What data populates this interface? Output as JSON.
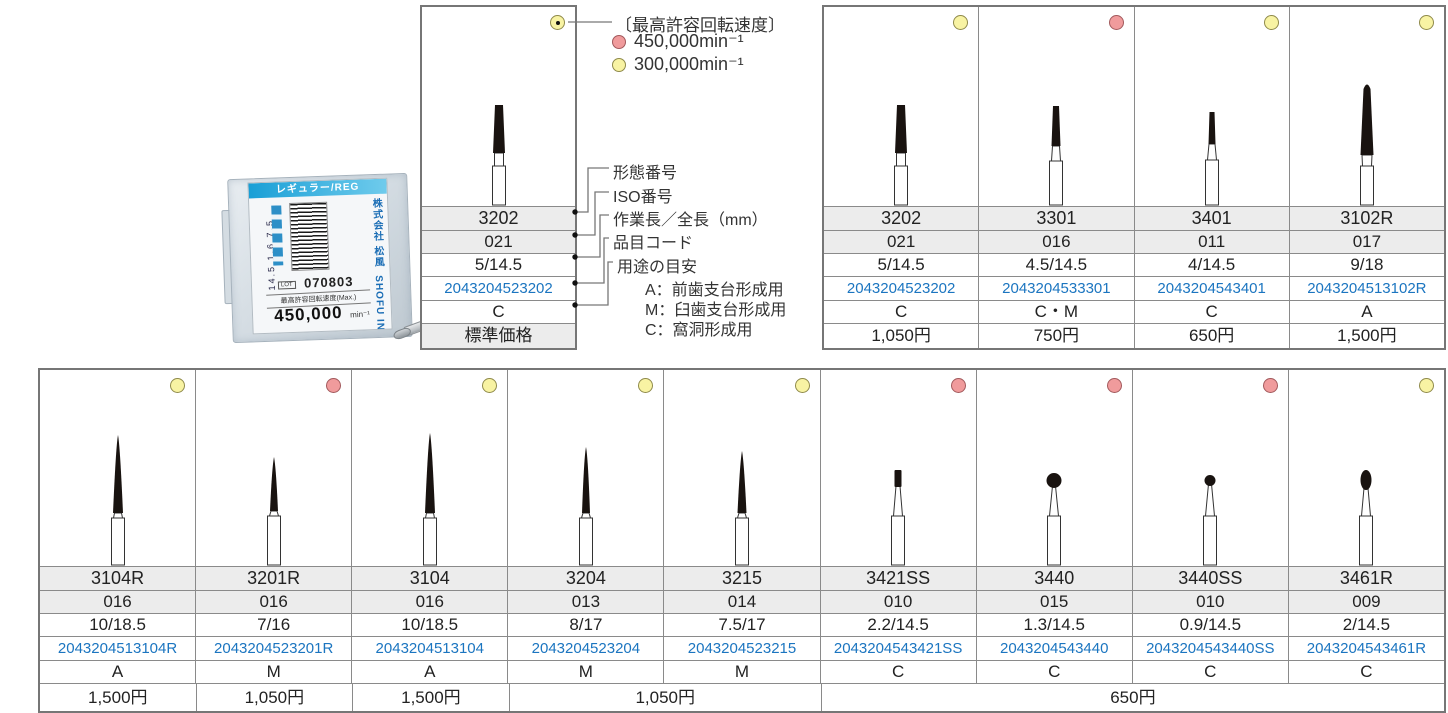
{
  "colors": {
    "yellow_dot": "#f8f3a3",
    "red_dot": "#f09b9c",
    "code_blue": "#1b75c0",
    "row_gray": "#ececec",
    "accent_cyan": "#199fd6"
  },
  "speed_legend": {
    "title": "〔最高許容回転速度〕",
    "items": [
      {
        "dot": "red",
        "label": "450,000min⁻¹"
      },
      {
        "dot": "yellow",
        "label": "300,000min⁻¹"
      }
    ]
  },
  "annotations": {
    "shape_no": "形態番号",
    "iso_no": "ISO番号",
    "length": "作業長／全長（mm）",
    "item_code": "品目コード",
    "usage_title": "用途の目安",
    "usage_a": "A：前歯支台形成用",
    "usage_m": "M：臼歯支台形成用",
    "usage_c": "C：窩洞形成用"
  },
  "legend_sample": {
    "dot": "yellow",
    "bur": "flat_l",
    "name": "3202",
    "iso": "021",
    "length": "5/14.5",
    "code": "2043204523202",
    "use": "C",
    "price_label": "標準価格"
  },
  "package": {
    "reg_label": "レギュラー/REG",
    "dims": "14.5 1.6 7.5",
    "lot_label": "LOT",
    "lot_number": "070803",
    "speed_label": "最高許容回転速度(Max.)",
    "speed_value": "450,000",
    "speed_unit": "min⁻¹",
    "company": "株式会社 松風",
    "brand": "SHOFU INC."
  },
  "top_table": {
    "products": [
      {
        "dot": "yellow",
        "bur": "flat_l",
        "name": "3202",
        "iso": "021",
        "length": "5/14.5",
        "code": "2043204523202",
        "use": "C"
      },
      {
        "dot": "red",
        "bur": "flat_m",
        "name": "3301",
        "iso": "016",
        "length": "4.5/14.5",
        "code": "2043204533301",
        "use": "C・M"
      },
      {
        "dot": "yellow",
        "bur": "flat_s",
        "name": "3401",
        "iso": "011",
        "length": "4/14.5",
        "code": "2043204543401",
        "use": "C"
      },
      {
        "dot": "yellow",
        "bur": "round_l",
        "name": "3102R",
        "iso": "017",
        "length": "9/18",
        "code": "2043204513102R",
        "use": "A"
      }
    ],
    "price_cells": [
      {
        "span": 1,
        "label": "1,050円"
      },
      {
        "span": 1,
        "label": "750円"
      },
      {
        "span": 1,
        "label": "650円"
      },
      {
        "span": 1,
        "label": "1,500円"
      }
    ]
  },
  "bottom_table": {
    "products": [
      {
        "dot": "yellow",
        "bur": "needle_a",
        "name": "3104R",
        "iso": "016",
        "length": "10/18.5",
        "code": "2043204513104R",
        "use": "A"
      },
      {
        "dot": "red",
        "bur": "needle_b",
        "name": "3201R",
        "iso": "016",
        "length": "7/16",
        "code": "2043204523201R",
        "use": "M"
      },
      {
        "dot": "yellow",
        "bur": "needle_c",
        "name": "3104",
        "iso": "016",
        "length": "10/18.5",
        "code": "2043204513104",
        "use": "A"
      },
      {
        "dot": "yellow",
        "bur": "needle_d",
        "name": "3204",
        "iso": "013",
        "length": "8/17",
        "code": "2043204523204",
        "use": "M"
      },
      {
        "dot": "yellow",
        "bur": "needle_e",
        "name": "3215",
        "iso": "014",
        "length": "7.5/17",
        "code": "2043204523215",
        "use": "M"
      },
      {
        "dot": "red",
        "bur": "cyl_s",
        "name": "3421SS",
        "iso": "010",
        "length": "2.2/14.5",
        "code": "2043204543421SS",
        "use": "C"
      },
      {
        "dot": "red",
        "bur": "ball",
        "name": "3440",
        "iso": "015",
        "length": "1.3/14.5",
        "code": "2043204543440",
        "use": "C"
      },
      {
        "dot": "red",
        "bur": "ball_s",
        "name": "3440SS",
        "iso": "010",
        "length": "0.9/14.5",
        "code": "2043204543440SS",
        "use": "C"
      },
      {
        "dot": "yellow",
        "bur": "egg",
        "name": "3461R",
        "iso": "009",
        "length": "2/14.5",
        "code": "2043204543461R",
        "use": "C"
      }
    ],
    "price_cells": [
      {
        "span": 1,
        "label": "1,500円"
      },
      {
        "span": 1,
        "label": "1,050円"
      },
      {
        "span": 1,
        "label": "1,500円"
      },
      {
        "span": 2,
        "label": "1,050円"
      },
      {
        "span": 4,
        "label": "650円"
      }
    ]
  }
}
